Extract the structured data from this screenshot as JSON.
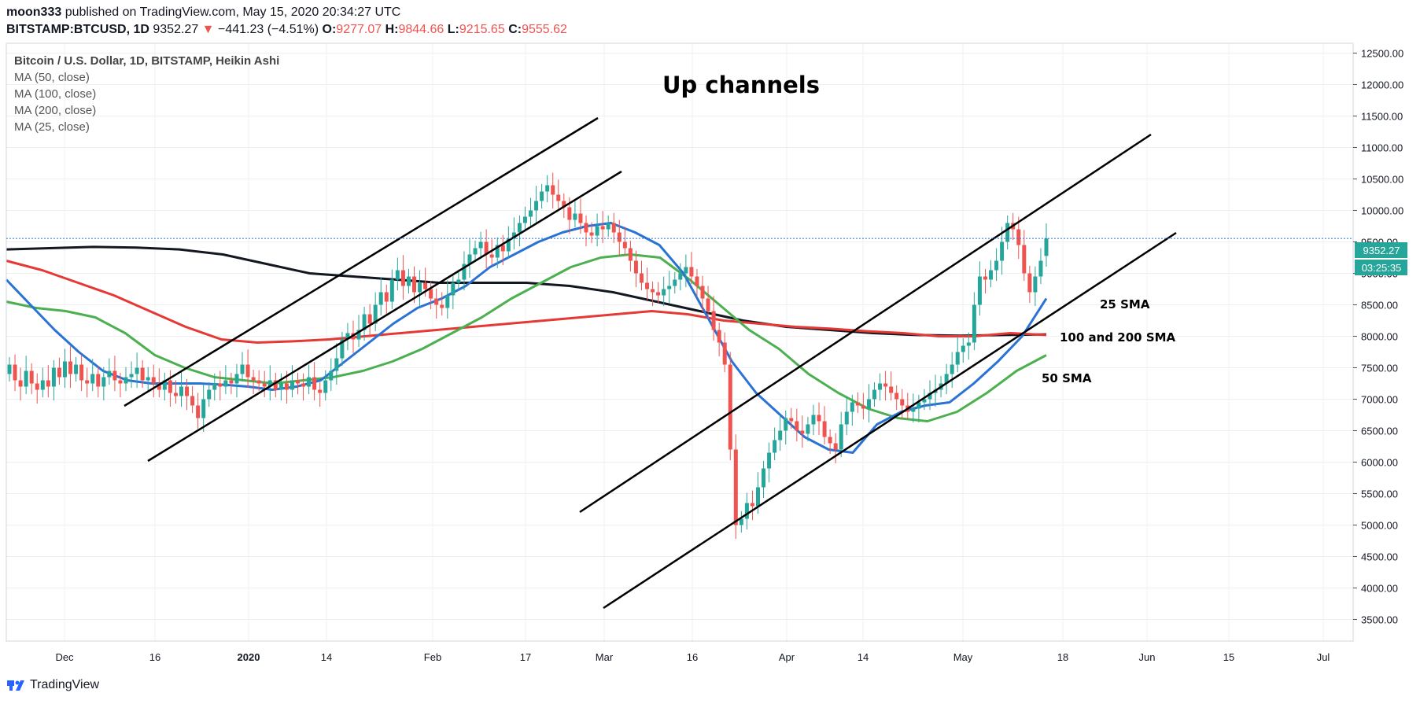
{
  "header": {
    "publisher": "moon333",
    "published_text": "published on TradingView.com, May 15, 2020 20:34:27 UTC",
    "symbol": "BITSTAMP:BTCUSD, 1D",
    "last": "9352.27",
    "change": "−441.23 (−4.51%)",
    "o_label": "O:",
    "o": "9277.07",
    "h_label": "H:",
    "h": "9844.66",
    "l_label": "L:",
    "l": "9215.65",
    "c_label": "C:",
    "c": "9555.62"
  },
  "legend": {
    "title": "Bitcoin / U.S. Dollar, 1D, BITSTAMP, Heikin Ashi",
    "items": [
      "MA (50, close)",
      "MA (100, close)",
      "MA (200, close)",
      "MA (25, close)"
    ]
  },
  "colors": {
    "up": "#26a69a",
    "down": "#ef5350",
    "ma25": "#2a72d4",
    "ma50": "#4caf50",
    "ma100": "#e53935",
    "ma200": "#131722",
    "grid": "#eef0f3",
    "axis": "#50535e"
  },
  "footer": {
    "brand": "TradingView"
  },
  "chart_data": {
    "type": "candlestick",
    "title": "Up channels",
    "ylim": [
      3300,
      12700
    ],
    "y_ticks": [
      "12500.00",
      "12000.00",
      "11500.00",
      "11000.00",
      "10500.00",
      "10000.00",
      "9500.00",
      "9000.00",
      "8500.00",
      "8000.00",
      "7500.00",
      "7000.00",
      "6500.00",
      "6000.00",
      "5500.00",
      "5000.00",
      "4500.00",
      "4000.00",
      "3500.00"
    ],
    "x_ticks": [
      "Dec",
      "16",
      "2020",
      "14",
      "Feb",
      "17",
      "Mar",
      "16",
      "Apr",
      "14",
      "May",
      "18",
      "Jun",
      "15",
      "Jul"
    ],
    "price_label": "9352.27",
    "countdown_label": "03:25:35",
    "annotations": {
      "title": "Up channels",
      "sma25": "25 SMA",
      "sma100_200": "100 and 200 SMA",
      "sma50": "50 SMA"
    },
    "candles_close": [
      7550,
      7300,
      7200,
      7450,
      7250,
      7150,
      7300,
      7200,
      7500,
      7350,
      7600,
      7400,
      7550,
      7300,
      7250,
      7400,
      7200,
      7350,
      7450,
      7300,
      7250,
      7350,
      7400,
      7500,
      7300,
      7350,
      7250,
      7150,
      7300,
      7100,
      7050,
      7200,
      7050,
      6900,
      6700,
      7000,
      7150,
      7250,
      7200,
      7300,
      7250,
      7400,
      7550,
      7350,
      7300,
      7250,
      7200,
      7300,
      7150,
      7250,
      7150,
      7300,
      7250,
      7200,
      7350,
      7150,
      7100,
      7300,
      7450,
      7650,
      7950,
      8050,
      7950,
      8100,
      8350,
      8200,
      8500,
      8700,
      8550,
      8900,
      9050,
      8800,
      8950,
      8700,
      8850,
      8750,
      8600,
      8500,
      8450,
      8650,
      8850,
      8900,
      9150,
      9300,
      9400,
      9500,
      9300,
      9250,
      9450,
      9350,
      9550,
      9650,
      9800,
      9900,
      10000,
      10150,
      10300,
      10400,
      10250,
      10150,
      10050,
      9850,
      9950,
      9800,
      9650,
      9600,
      9750,
      9700,
      9800,
      9650,
      9500,
      9400,
      9200,
      9000,
      8850,
      8750,
      8700,
      8650,
      8750,
      8800,
      8900,
      9000,
      9100,
      8950,
      8800,
      8600,
      8400,
      8100,
      7900,
      7550,
      6200,
      5000,
      5100,
      5350,
      5300,
      5600,
      5900,
      6150,
      6350,
      6500,
      6700,
      6650,
      6500,
      6450,
      6600,
      6750,
      6650,
      6400,
      6300,
      6200,
      6600,
      6800,
      6950,
      6900,
      6850,
      7000,
      7150,
      7250,
      7200,
      7100,
      7000,
      6900,
      6800,
      6850,
      6950,
      7000,
      7100,
      7150,
      7250,
      7400,
      7550,
      7750,
      7850,
      7900,
      8500,
      8950,
      8900,
      9050,
      9200,
      9500,
      9800,
      9700,
      9450,
      9000,
      8700,
      8950,
      9200,
      9555
    ],
    "candles_open": [
      7400,
      7550,
      7300,
      7200,
      7450,
      7250,
      7150,
      7300,
      7200,
      7500,
      7350,
      7600,
      7400,
      7550,
      7300,
      7250,
      7400,
      7200,
      7350,
      7450,
      7300,
      7250,
      7350,
      7400,
      7500,
      7300,
      7350,
      7250,
      7150,
      7300,
      7100,
      7050,
      7200,
      7050,
      6900,
      6700,
      7000,
      7150,
      7250,
      7200,
      7300,
      7250,
      7400,
      7550,
      7350,
      7300,
      7250,
      7200,
      7300,
      7150,
      7250,
      7150,
      7300,
      7250,
      7200,
      7350,
      7150,
      7100,
      7300,
      7450,
      7650,
      7950,
      8050,
      7950,
      8100,
      8350,
      8200,
      8500,
      8700,
      8550,
      8900,
      9050,
      8800,
      8950,
      8700,
      8850,
      8750,
      8600,
      8500,
      8450,
      8650,
      8850,
      8900,
      9150,
      9300,
      9400,
      9500,
      9300,
      9250,
      9450,
      9350,
      9550,
      9650,
      9800,
      9900,
      10000,
      10150,
      10300,
      10400,
      10250,
      10150,
      10050,
      9850,
      9950,
      9800,
      9650,
      9600,
      9750,
      9700,
      9800,
      9650,
      9500,
      9400,
      9200,
      9000,
      8850,
      8750,
      8700,
      8650,
      8750,
      8800,
      8900,
      9000,
      9100,
      8950,
      8800,
      8600,
      8400,
      8100,
      7900,
      7550,
      6200,
      5000,
      5100,
      5350,
      5300,
      5600,
      5900,
      6150,
      6350,
      6500,
      6700,
      6650,
      6500,
      6450,
      6600,
      6750,
      6650,
      6400,
      6300,
      6200,
      6600,
      6800,
      6950,
      6900,
      6850,
      7000,
      7150,
      7250,
      7200,
      7100,
      7000,
      6900,
      6800,
      6850,
      6950,
      7000,
      7100,
      7150,
      7250,
      7400,
      7550,
      7750,
      7850,
      7900,
      8500,
      8950,
      8900,
      9050,
      9200,
      9500,
      9800,
      9700,
      9450,
      9000,
      8700,
      8950,
      9277
    ],
    "series": [
      {
        "name": "MA (25, close)",
        "values": [
          8900,
          8500,
          8100,
          7750,
          7450,
          7300,
          7250,
          7250,
          7250,
          7230,
          7200,
          7150,
          7200,
          7300,
          7600,
          7900,
          8200,
          8450,
          8600,
          8800,
          9100,
          9300,
          9500,
          9650,
          9750,
          9800,
          9650,
          9450,
          9000,
          8300,
          7600,
          7100,
          6750,
          6400,
          6200,
          6150,
          6600,
          6800,
          6900,
          6950,
          7250,
          7600,
          8000,
          8600
        ]
      },
      {
        "name": "MA (50, close)",
        "values": [
          8550,
          8450,
          8400,
          8300,
          8050,
          7700,
          7500,
          7350,
          7300,
          7250,
          7300,
          7350,
          7450,
          7600,
          7800,
          8050,
          8300,
          8600,
          8850,
          9100,
          9250,
          9300,
          9250,
          8900,
          8500,
          8100,
          7800,
          7400,
          7100,
          6850,
          6700,
          6650,
          6800,
          7100,
          7450,
          7700
        ]
      },
      {
        "name": "MA (100, close)",
        "values": [
          9200,
          9050,
          8850,
          8650,
          8400,
          8150,
          7950,
          7900,
          7920,
          7950,
          8000,
          8050,
          8100,
          8150,
          8200,
          8250,
          8300,
          8350,
          8400,
          8350,
          8250,
          8200,
          8150,
          8120,
          8080,
          8050,
          8000,
          8000,
          8050,
          8020
        ]
      },
      {
        "name": "MA (200, close)",
        "values": [
          9380,
          9400,
          9420,
          9410,
          9380,
          9300,
          9150,
          9000,
          8950,
          8900,
          8850,
          8850,
          8850,
          8800,
          8700,
          8550,
          8400,
          8250,
          8150,
          8100,
          8050,
          8020,
          8010,
          8020,
          8030
        ]
      }
    ]
  }
}
